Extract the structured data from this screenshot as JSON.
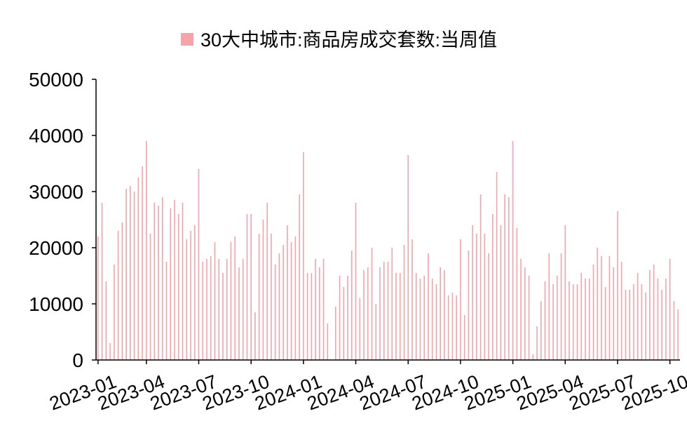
{
  "chart_data": {
    "type": "bar",
    "categories": [
      "2023-01",
      null,
      null,
      null,
      null,
      null,
      null,
      null,
      null,
      null,
      null,
      null,
      "2023-04",
      null,
      null,
      null,
      null,
      null,
      null,
      null,
      null,
      null,
      null,
      null,
      null,
      "2023-07",
      null,
      null,
      null,
      null,
      null,
      null,
      null,
      null,
      null,
      null,
      null,
      null,
      "2023-10",
      null,
      null,
      null,
      null,
      null,
      null,
      null,
      null,
      null,
      null,
      null,
      null,
      "2024-01",
      null,
      null,
      null,
      null,
      null,
      null,
      null,
      null,
      null,
      null,
      null,
      null,
      "2024-04",
      null,
      null,
      null,
      null,
      null,
      null,
      null,
      null,
      null,
      null,
      null,
      null,
      "2024-07",
      null,
      null,
      null,
      null,
      null,
      null,
      null,
      null,
      null,
      null,
      null,
      null,
      "2024-10",
      null,
      null,
      null,
      null,
      null,
      null,
      null,
      null,
      null,
      null,
      null,
      null,
      "2025-01",
      null,
      null,
      null,
      null,
      null,
      null,
      null,
      null,
      null,
      null,
      null,
      null,
      "2025-04",
      null,
      null,
      null,
      null,
      null,
      null,
      null,
      null,
      null,
      null,
      null,
      null,
      "2025-07",
      null,
      null,
      null,
      null,
      null,
      null,
      null,
      null,
      null,
      null,
      null,
      null,
      "2025-10",
      null,
      null
    ],
    "series": [
      {
        "name": "30大中城市:商品房成交套数:当周值",
        "color": "#f4a3aa",
        "values": [
          22000,
          28000,
          14000,
          3000,
          17000,
          23000,
          24500,
          30500,
          31000,
          30000,
          32500,
          34500,
          39000,
          22500,
          28000,
          27500,
          29000,
          17500,
          27000,
          28500,
          26000,
          28000,
          21500,
          23000,
          24000,
          34000,
          17500,
          18000,
          18500,
          21000,
          18000,
          15500,
          18000,
          21000,
          22000,
          16500,
          18000,
          26000,
          26000,
          8500,
          22500,
          25000,
          28000,
          22500,
          17000,
          19000,
          20500,
          24000,
          21000,
          22000,
          29500,
          37000,
          15500,
          15500,
          18000,
          16500,
          18000,
          6500,
          0,
          9500,
          15000,
          13000,
          15000,
          19500,
          28000,
          11000,
          16000,
          16500,
          20000,
          10000,
          16500,
          17500,
          17500,
          20000,
          15500,
          15500,
          20500,
          36500,
          21500,
          15500,
          14500,
          15000,
          19000,
          14500,
          13500,
          16500,
          16000,
          11500,
          12000,
          11500,
          21500,
          8000,
          19500,
          24000,
          22500,
          29500,
          22500,
          19000,
          26000,
          33500,
          24000,
          29500,
          29000,
          39000,
          23500,
          18000,
          16500,
          15000,
          1000,
          6000,
          10500,
          14000,
          19000,
          13500,
          15000,
          19000,
          24000,
          14000,
          13500,
          13500,
          15500,
          14500,
          14500,
          17000,
          20000,
          18500,
          13000,
          18500,
          16500,
          26500,
          17500,
          12500,
          12500,
          13500,
          15500,
          13500,
          12000,
          16000,
          17000,
          14500,
          12500,
          14500,
          18000,
          10500,
          9000
        ]
      }
    ],
    "ylim": [
      0,
      50000
    ],
    "yticks": [
      0,
      10000,
      20000,
      30000,
      40000,
      50000
    ],
    "grid": false,
    "legend": "top"
  }
}
